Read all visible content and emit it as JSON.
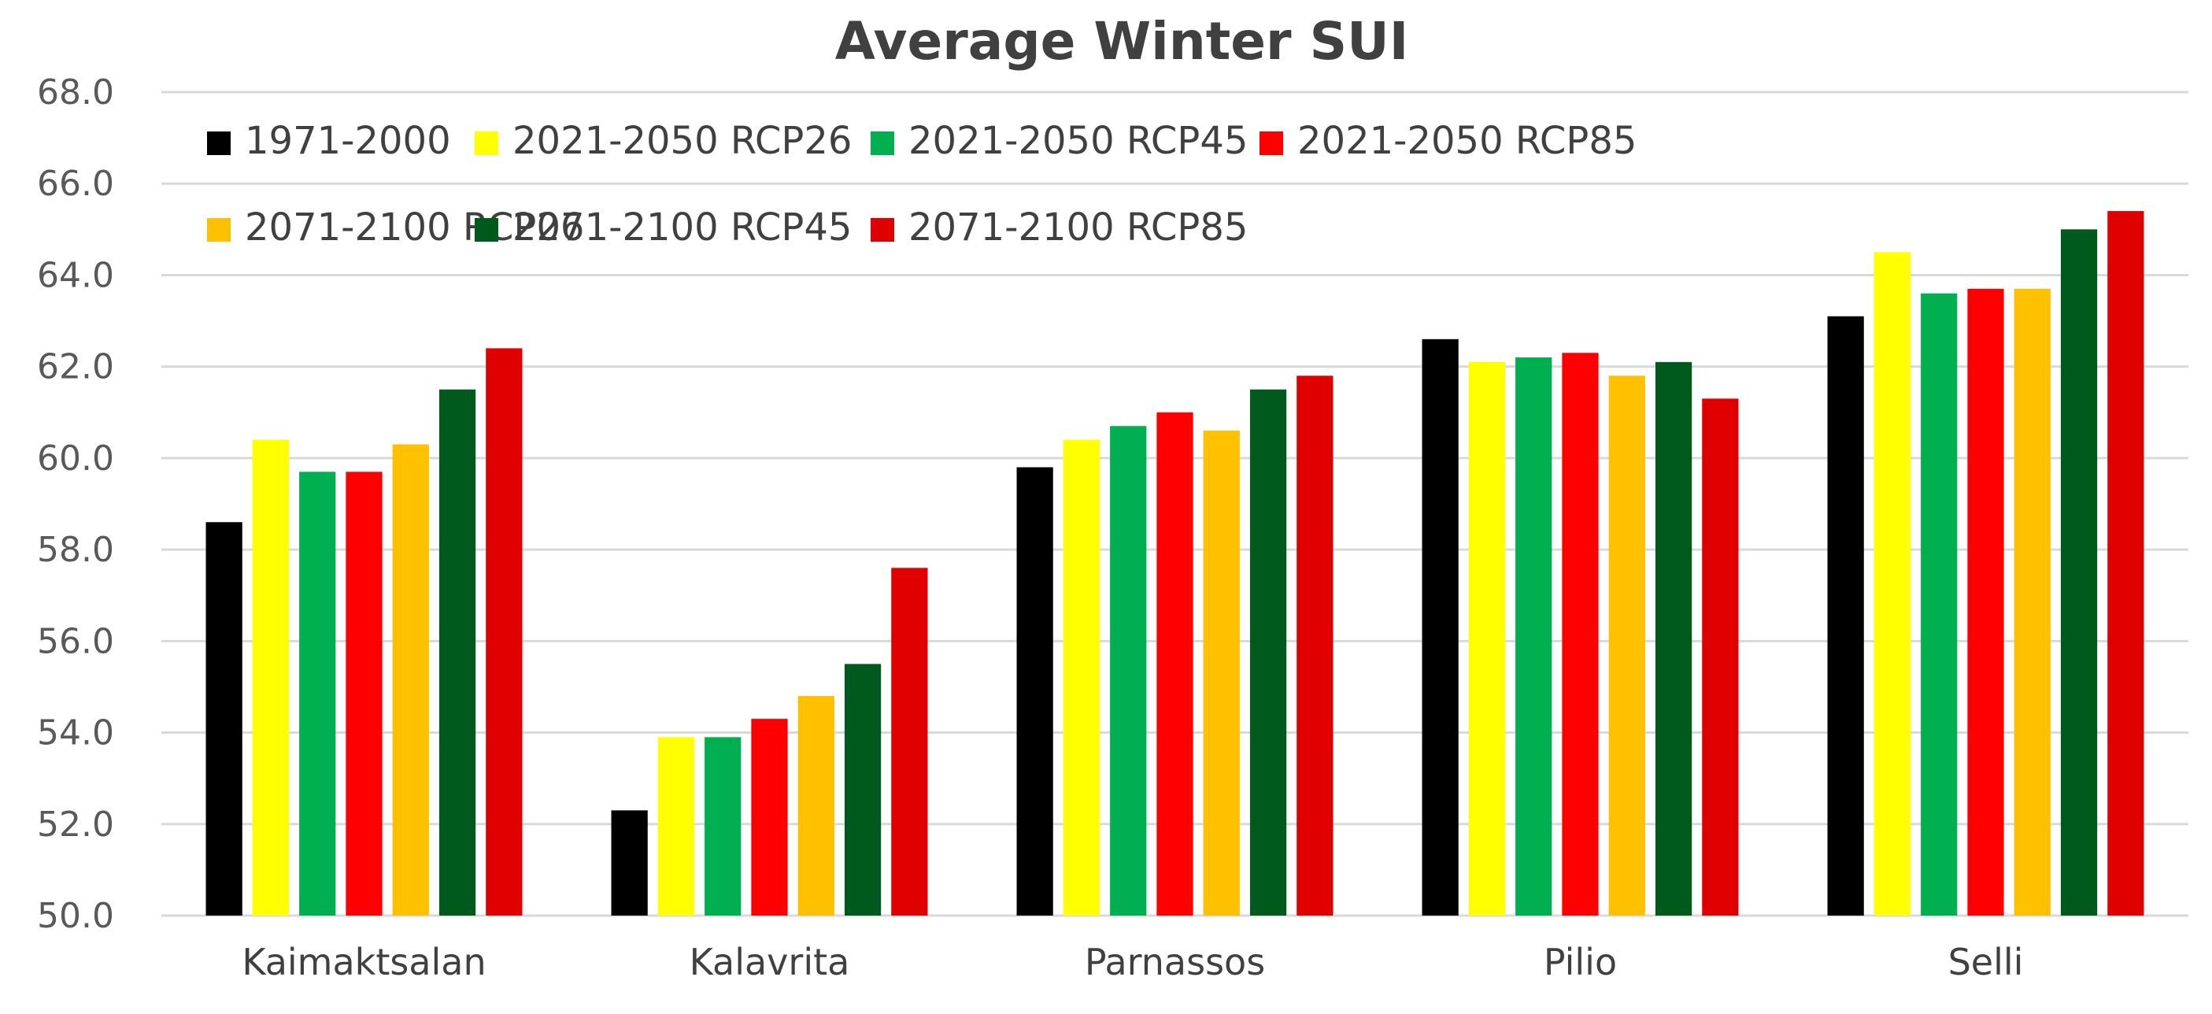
{
  "chart_data": {
    "type": "bar",
    "title": "Average Winter SUI",
    "xlabel": "",
    "ylabel": "",
    "ylim": [
      50,
      68
    ],
    "yticks": [
      "50.0",
      "52.0",
      "54.0",
      "56.0",
      "58.0",
      "60.0",
      "62.0",
      "64.0",
      "66.0",
      "68.0"
    ],
    "grid": true,
    "legend_position": "top",
    "categories": [
      "Kaimaktsalan",
      "Kalavrita",
      "Parnassos",
      "Pilio",
      "Selli"
    ],
    "series": [
      {
        "name": "1971-2000",
        "color": "#000000",
        "values": [
          58.6,
          52.3,
          59.8,
          62.6,
          63.1
        ]
      },
      {
        "name": "2021-2050 RCP26",
        "color": "#FFFF00",
        "values": [
          60.4,
          53.9,
          60.4,
          62.1,
          64.5
        ]
      },
      {
        "name": "2021-2050 RCP45",
        "color": "#00B050",
        "values": [
          59.7,
          53.9,
          60.7,
          62.2,
          63.6
        ]
      },
      {
        "name": "2021-2050 RCP85",
        "color": "#FF0000",
        "values": [
          59.7,
          54.3,
          61.0,
          62.3,
          63.7
        ]
      },
      {
        "name": "2071-2100 RCP26",
        "color": "#FFC000",
        "values": [
          60.3,
          54.8,
          60.6,
          61.8,
          63.7
        ]
      },
      {
        "name": "2071-2100 RCP45",
        "color": "#005A1E",
        "values": [
          61.5,
          55.5,
          61.5,
          62.1,
          65.0
        ]
      },
      {
        "name": "2071-2100 RCP85",
        "color": "#E00000",
        "values": [
          62.4,
          57.6,
          61.8,
          61.3,
          65.4
        ]
      }
    ]
  }
}
